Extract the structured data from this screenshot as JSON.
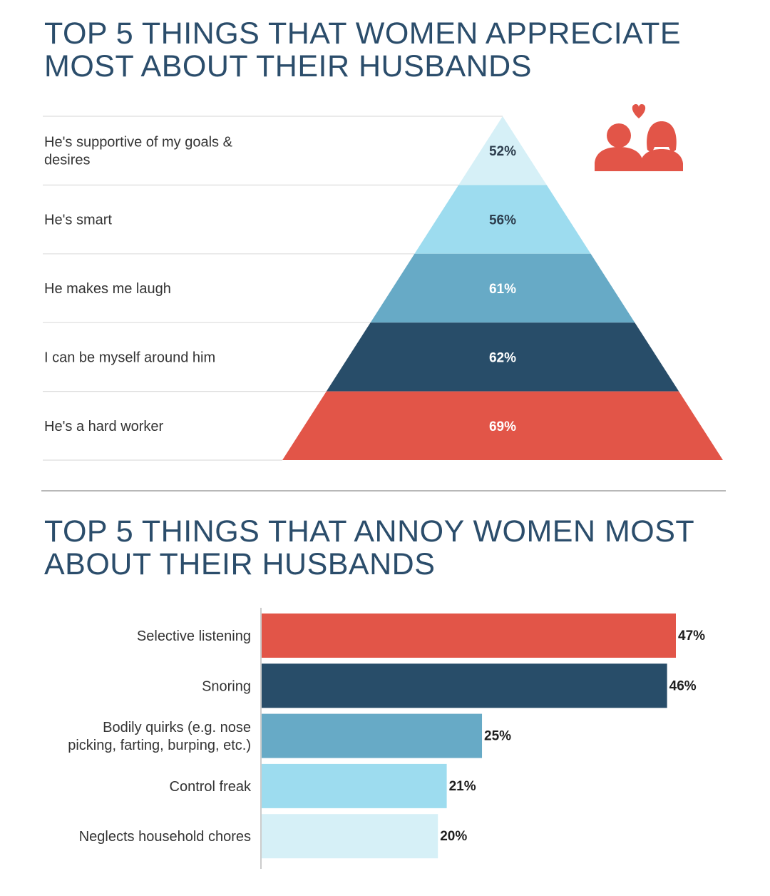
{
  "colors": {
    "title": "#2b4d6b",
    "tier_1": "#d6f0f7",
    "tier_2": "#9ddcef",
    "tier_3": "#67aac6",
    "tier_4": "#284d69",
    "tier_5": "#e25548",
    "icon": "#e25548",
    "gridline": "#dddddd",
    "label_text": "#333333"
  },
  "icons": [
    "couple-heart-icon"
  ],
  "chart_data": [
    {
      "type": "pyramid",
      "title_lines": [
        "TOP 5 THINGS THAT WOMEN APPRECIATE",
        "MOST ABOUT THEIR HUSBANDS"
      ],
      "unit": "%",
      "rows": [
        {
          "label_lines": [
            "He's supportive of my goals &",
            "desires"
          ],
          "value": 52,
          "value_label": "52%"
        },
        {
          "label_lines": [
            "He's smart"
          ],
          "value": 56,
          "value_label": "56%"
        },
        {
          "label_lines": [
            "He makes me laugh"
          ],
          "value": 61,
          "value_label": "61%"
        },
        {
          "label_lines": [
            "I can be myself around him"
          ],
          "value": 62,
          "value_label": "62%"
        },
        {
          "label_lines": [
            "He's a hard worker"
          ],
          "value": 69,
          "value_label": "69%"
        }
      ]
    },
    {
      "type": "bar",
      "orientation": "horizontal",
      "title_lines": [
        "TOP 5 THINGS THAT ANNOY WOMEN MOST",
        "ABOUT THEIR HUSBANDS"
      ],
      "unit": "%",
      "xlim": [
        0,
        47
      ],
      "bars": [
        {
          "label_lines": [
            "Selective listening"
          ],
          "value": 47,
          "value_label": "47%"
        },
        {
          "label_lines": [
            "Snoring"
          ],
          "value": 46,
          "value_label": "46%"
        },
        {
          "label_lines": [
            "Bodily quirks (e.g. nose",
            "picking, farting, burping, etc.)"
          ],
          "value": 25,
          "value_label": "25%"
        },
        {
          "label_lines": [
            "Control freak"
          ],
          "value": 21,
          "value_label": "21%"
        },
        {
          "label_lines": [
            "Neglects household chores"
          ],
          "value": 20,
          "value_label": "20%"
        }
      ]
    }
  ]
}
